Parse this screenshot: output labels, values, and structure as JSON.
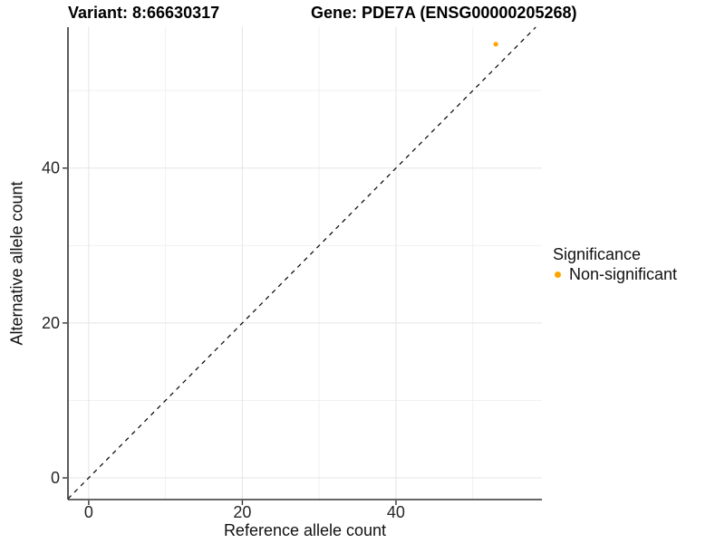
{
  "chart_data": {
    "type": "scatter",
    "title_left": "Variant: 8:66630317",
    "title_right": "Gene: PDE7A (ENSG00000205268)",
    "xlabel": "Reference allele count",
    "ylabel": "Alternative allele count",
    "xlim": [
      -2.7,
      59.0
    ],
    "ylim": [
      -2.8,
      58.2
    ],
    "x_ticks": [
      0,
      20,
      40
    ],
    "y_ticks": [
      0,
      20,
      40
    ],
    "x_minor_ticks": [
      10,
      30,
      50
    ],
    "y_minor_ticks": [
      10,
      30,
      50
    ],
    "grid": true,
    "reference_line": {
      "style": "dashed",
      "slope": 1,
      "intercept": 0,
      "color": "#000000"
    },
    "series": [
      {
        "name": "Non-significant",
        "color": "#FFA500",
        "points": [
          {
            "x": 53,
            "y": 56
          }
        ]
      }
    ],
    "legend": {
      "title": "Significance",
      "position": "right",
      "entries": [
        {
          "label": "Non-significant",
          "color": "#FFA500"
        }
      ]
    },
    "colors": {
      "grid_major": "#E5E5E5",
      "grid_minor": "#F1F1F1",
      "axis_line": "#333333",
      "tick_mark": "#333333",
      "tick_label": "#262626"
    }
  }
}
